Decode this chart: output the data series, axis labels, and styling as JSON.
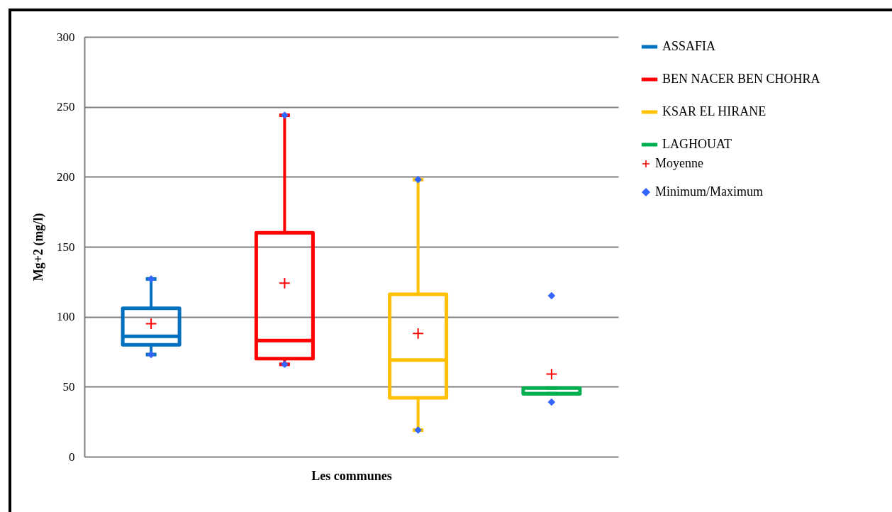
{
  "chart_data": {
    "type": "box",
    "xlabel": "Les communes",
    "ylabel": "Mg+2 (mg/l)",
    "categories": [
      null,
      null,
      null,
      null
    ],
    "ylim": [
      0,
      300
    ],
    "yticks": [
      0,
      50,
      100,
      150,
      200,
      250,
      300
    ],
    "grid": "y",
    "legend": "right",
    "series": [
      {
        "name": "ASSAFIA",
        "color": "#0070c0",
        "boxes": [
          {
            "low": 73,
            "q1": 80,
            "median": 86,
            "q3": 106,
            "high": 127
          },
          null,
          null,
          null
        ]
      },
      {
        "name": "BEN NACER BEN CHOHRA",
        "color": "#ff0000",
        "boxes": [
          null,
          {
            "low": 66,
            "q1": 70,
            "median": 83,
            "q3": 160,
            "high": 244
          },
          null,
          null
        ]
      },
      {
        "name": "KSAR EL HIRANE",
        "color": "#ffc000",
        "boxes": [
          null,
          null,
          {
            "low": 19,
            "q1": 42,
            "median": 69,
            "q3": 116,
            "high": 198
          },
          null
        ]
      },
      {
        "name": "LAGHOUAT",
        "color": "#00b050",
        "boxes": [
          null,
          null,
          null,
          {
            "low": 45,
            "q1": 45,
            "median": 45,
            "q3": 49,
            "high": 49
          }
        ]
      },
      {
        "name": "Moyenne",
        "type": "scatter",
        "marker": "cross",
        "color": "#ff0000",
        "values": [
          95,
          124,
          88,
          59
        ]
      },
      {
        "name": "Minimum/Maximum",
        "type": "scatter",
        "marker": "diamond",
        "color": "#3366ff",
        "values": [
          127,
          244,
          198,
          115
        ]
      },
      {
        "type": "scatter",
        "marker": "diamond",
        "color": "#3366ff",
        "values": [
          73,
          66,
          19,
          39
        ]
      }
    ]
  }
}
